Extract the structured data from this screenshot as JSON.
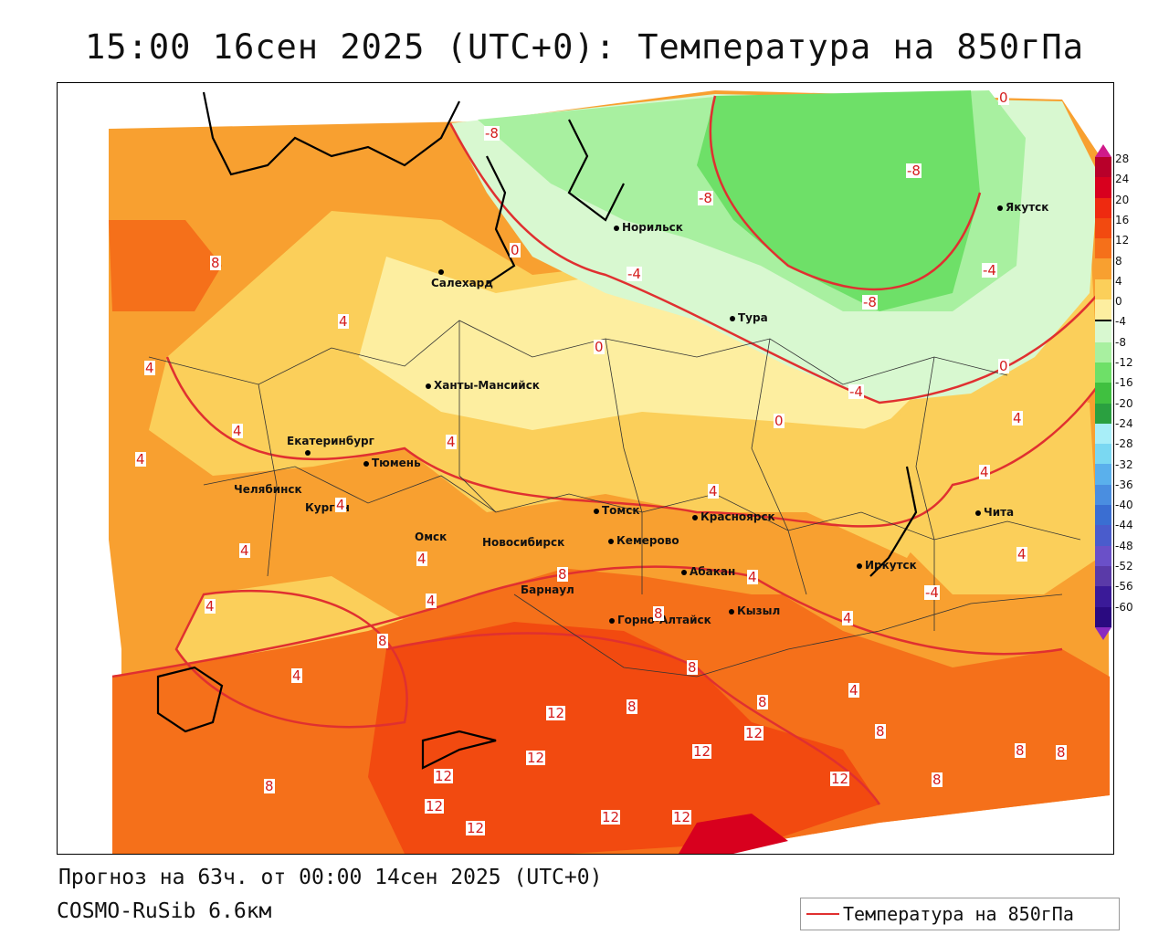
{
  "title": "15:00 16сен 2025 (UTC+0): Температура на 850гПа",
  "footer": {
    "forecast": "Прогноз на 63ч. от 00:00 14сен 2025 (UTC+0)",
    "model": "COSMO-RuSib 6.6км"
  },
  "legend": {
    "label": "Температура на 850гПа",
    "line_color": "#e03030"
  },
  "colorbar": {
    "labels": [
      "28",
      "24",
      "20",
      "16",
      "12",
      "8",
      "4",
      "0",
      "-4",
      "-8",
      "-12",
      "-16",
      "-20",
      "-24",
      "-28",
      "-32",
      "-36",
      "-40",
      "-44",
      "-48",
      "-52",
      "-56",
      "-60"
    ],
    "colors": [
      "#b8002a",
      "#d8001e",
      "#ee2a10",
      "#f24a10",
      "#f5701a",
      "#f8a030",
      "#fbcf5a",
      "#fdeea0",
      "#d8f8d0",
      "#a8f0a0",
      "#6ee068",
      "#40c040",
      "#2aa040",
      "#a8eef8",
      "#7ad8f2",
      "#5ab0ec",
      "#4a8ee0",
      "#3a6ed2",
      "#4a5ccc",
      "#6a50c8",
      "#5a3aa8",
      "#3a1a98",
      "#2a0a80"
    ],
    "top_tip_color": "#d01a8a",
    "bottom_tip_color": "#8a2ac0"
  },
  "cities": [
    {
      "name": "Норильск"
    },
    {
      "name": "Якутск"
    },
    {
      "name": "Салехард"
    },
    {
      "name": "Тура"
    },
    {
      "name": "Ханты-Мансийск"
    },
    {
      "name": "Екатеринбург"
    },
    {
      "name": "Тюмень"
    },
    {
      "name": "Челябинск"
    },
    {
      "name": "Курган"
    },
    {
      "name": "Томск"
    },
    {
      "name": "Красноярск"
    },
    {
      "name": "Чита"
    },
    {
      "name": "Омск"
    },
    {
      "name": "Новосибирск"
    },
    {
      "name": "Кемерово"
    },
    {
      "name": "Иркутск"
    },
    {
      "name": "Абакан"
    },
    {
      "name": "Барнаул"
    },
    {
      "name": "Горно-Алтайск"
    },
    {
      "name": "Кызыл"
    }
  ],
  "isotherm_labels": [
    "-8",
    "-8",
    "-8",
    "-8",
    "-4",
    "-4",
    "-4",
    "-4",
    "0",
    "0",
    "0",
    "0",
    "0",
    "4",
    "4",
    "4",
    "4",
    "4",
    "4",
    "4",
    "4",
    "4",
    "4",
    "4",
    "4",
    "4",
    "4",
    "4",
    "4",
    "4",
    "4",
    "8",
    "8",
    "8",
    "8",
    "8",
    "8",
    "8",
    "8",
    "8",
    "8",
    "8",
    "8",
    "12",
    "12",
    "12",
    "12",
    "12",
    "12",
    "12",
    "12",
    "12",
    "12"
  ]
}
